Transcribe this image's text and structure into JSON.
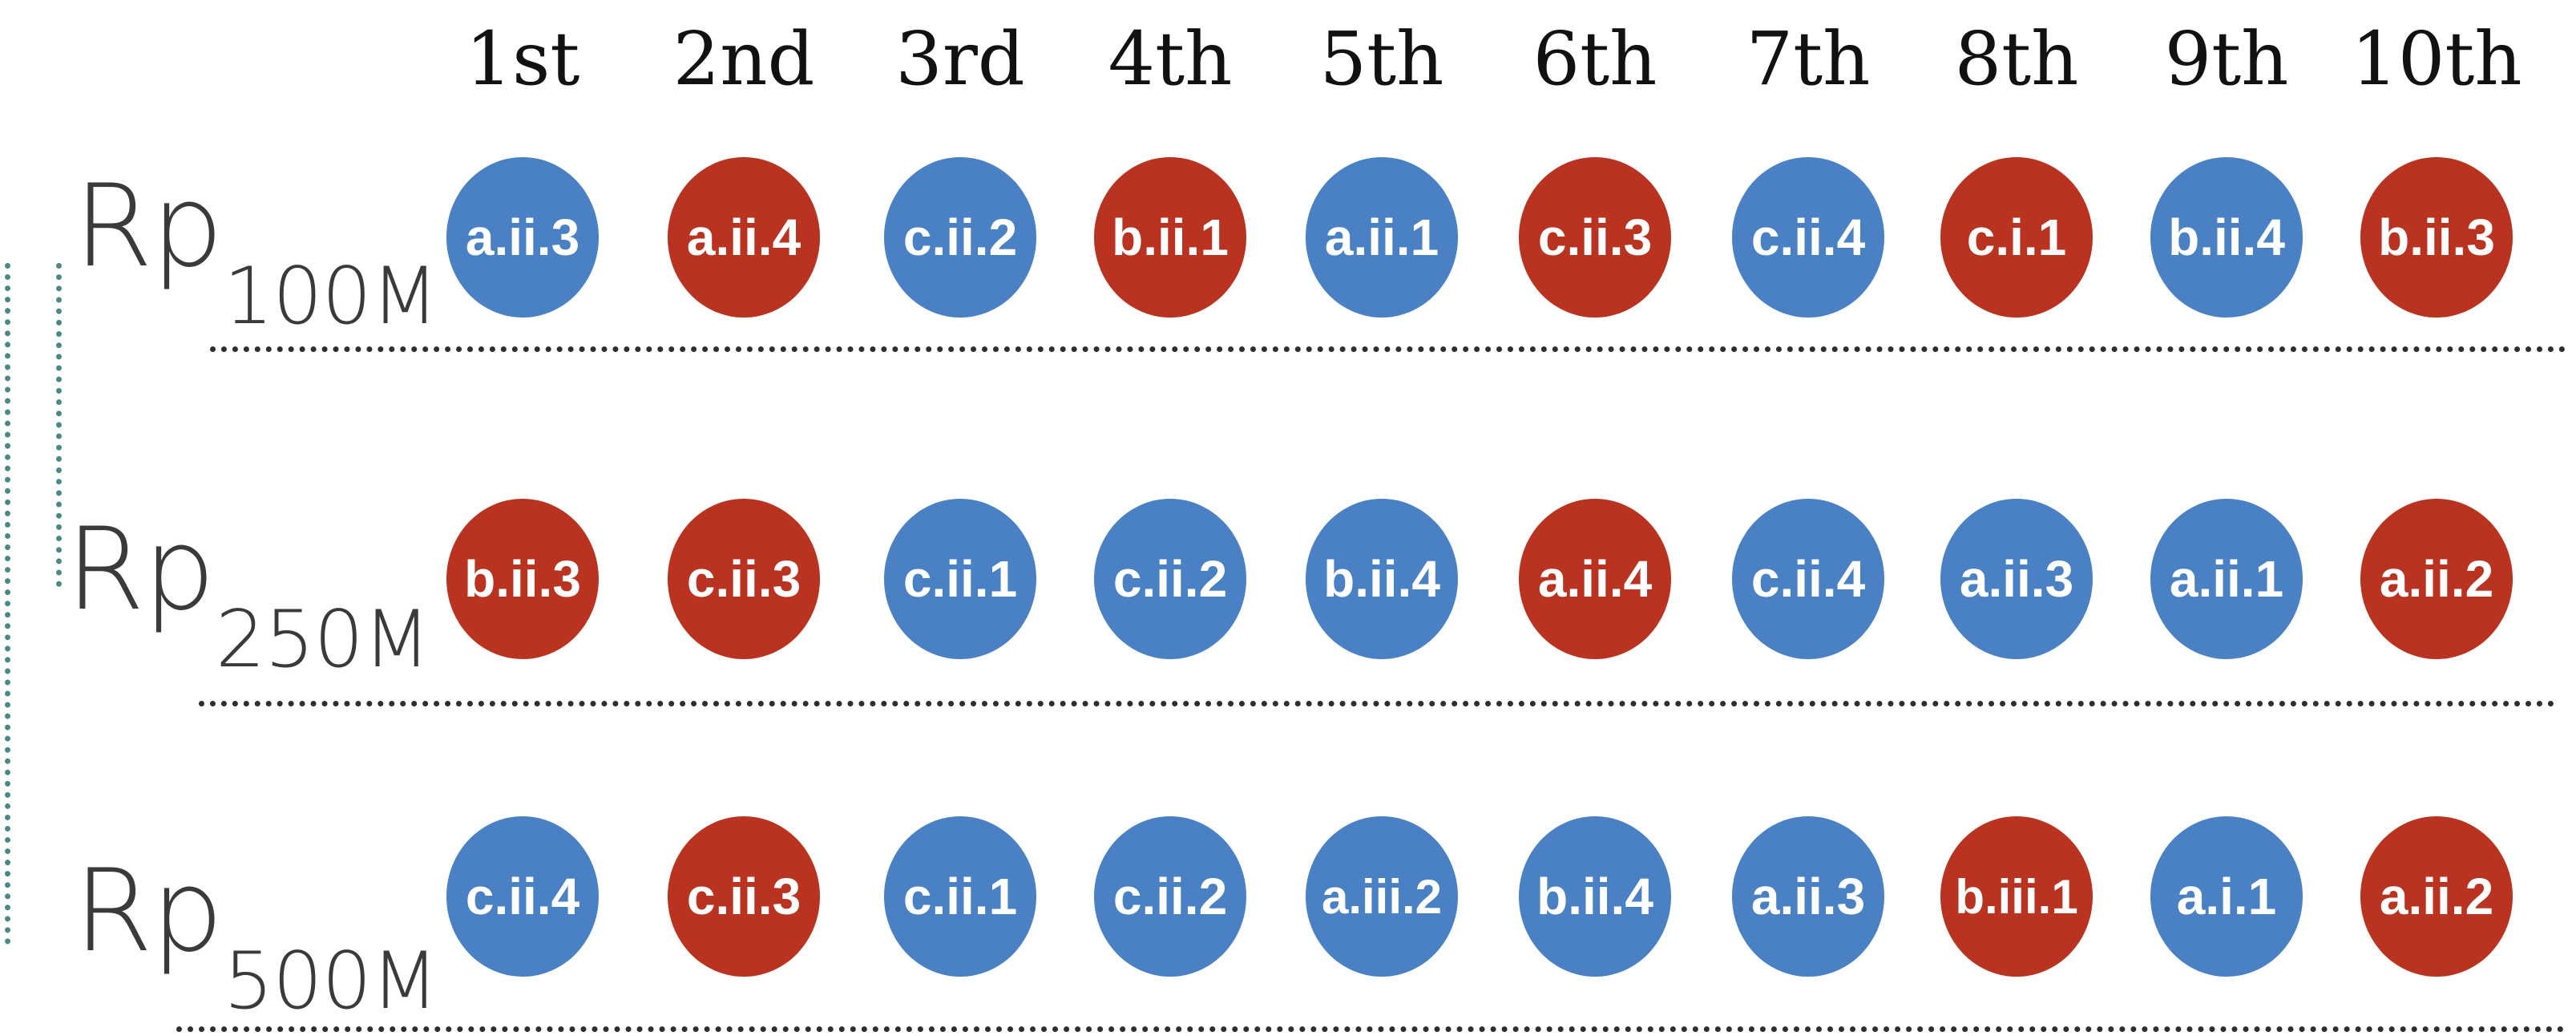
{
  "colors": {
    "blue": "#4a80c4",
    "red": "#ba3220",
    "separator": "#2e2e2e",
    "bracket": "#4a8a86"
  },
  "ranks": [
    "1st",
    "2nd",
    "3rd",
    "4th",
    "5th",
    "6th",
    "7th",
    "8th",
    "9th",
    "10th"
  ],
  "rows": [
    {
      "base": "Rp",
      "sub": "100M",
      "items": [
        {
          "label": "a.ii.3",
          "color": "blue"
        },
        {
          "label": "a.ii.4",
          "color": "red"
        },
        {
          "label": "c.ii.2",
          "color": "blue"
        },
        {
          "label": "b.ii.1",
          "color": "red"
        },
        {
          "label": "a.ii.1",
          "color": "blue"
        },
        {
          "label": "c.ii.3",
          "color": "red"
        },
        {
          "label": "c.ii.4",
          "color": "blue"
        },
        {
          "label": "c.i.1",
          "color": "red"
        },
        {
          "label": "b.ii.4",
          "color": "blue"
        },
        {
          "label": "b.ii.3",
          "color": "red"
        }
      ]
    },
    {
      "base": "Rp",
      "sub": "250M",
      "items": [
        {
          "label": "b.ii.3",
          "color": "red"
        },
        {
          "label": "c.ii.3",
          "color": "red"
        },
        {
          "label": "c.ii.1",
          "color": "blue"
        },
        {
          "label": "c.ii.2",
          "color": "blue"
        },
        {
          "label": "b.ii.4",
          "color": "blue"
        },
        {
          "label": "a.ii.4",
          "color": "red"
        },
        {
          "label": "c.ii.4",
          "color": "blue"
        },
        {
          "label": "a.ii.3",
          "color": "blue"
        },
        {
          "label": "a.ii.1",
          "color": "blue"
        },
        {
          "label": "a.ii.2",
          "color": "red"
        }
      ]
    },
    {
      "base": "Rp",
      "sub": "500M",
      "items": [
        {
          "label": "c.ii.4",
          "color": "blue"
        },
        {
          "label": "c.ii.3",
          "color": "red"
        },
        {
          "label": "c.ii.1",
          "color": "blue"
        },
        {
          "label": "c.ii.2",
          "color": "blue"
        },
        {
          "label": "a.iii.2",
          "color": "blue"
        },
        {
          "label": "b.ii.4",
          "color": "blue"
        },
        {
          "label": "a.ii.3",
          "color": "blue"
        },
        {
          "label": "b.iii.1",
          "color": "red"
        },
        {
          "label": "a.i.1",
          "color": "blue"
        },
        {
          "label": "a.ii.2",
          "color": "red"
        }
      ]
    }
  ]
}
